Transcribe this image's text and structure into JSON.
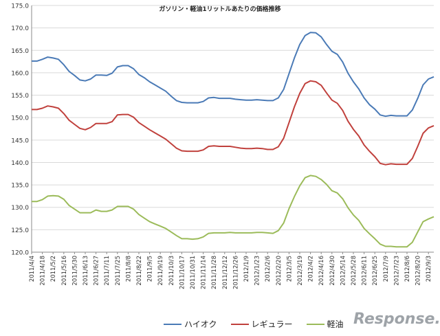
{
  "chart_data": {
    "type": "line",
    "title": "ガソリン・軽油1リットルあたりの価格推移",
    "xlabel": "",
    "ylabel": "",
    "ylim": [
      120,
      175
    ],
    "yticks": [
      "120.0",
      "125.0",
      "130.0",
      "135.0",
      "140.0",
      "145.0",
      "150.0",
      "155.0",
      "160.0",
      "165.0",
      "170.0",
      "175.0"
    ],
    "grid": true,
    "legend_position": "bottom",
    "x": [
      "2011/4/4",
      "2011/4/11",
      "2011/4/18",
      "2011/4/25",
      "2011/5/2",
      "2011/5/9",
      "2011/5/16",
      "2011/5/23",
      "2011/5/30",
      "2011/6/6",
      "2011/6/13",
      "2011/6/20",
      "2011/6/27",
      "2011/7/4",
      "2011/7/11",
      "2011/7/18",
      "2011/7/25",
      "2011/8/1",
      "2011/8/8",
      "2011/8/15",
      "2011/8/22",
      "2011/8/29",
      "2011/9/5",
      "2011/9/12",
      "2011/9/19",
      "2011/9/26",
      "2011/10/3",
      "2011/10/10",
      "2011/10/17",
      "2011/10/24",
      "2011/10/31",
      "2011/11/7",
      "2011/11/14",
      "2011/11/21",
      "2011/11/28",
      "2011/12/5",
      "2011/12/12",
      "2011/12/19",
      "2011/12/26",
      "2012/1/2",
      "2012/1/9",
      "2012/1/16",
      "2012/1/23",
      "2012/1/30",
      "2012/2/6",
      "2012/2/13",
      "2012/2/20",
      "2012/2/27",
      "2012/3/5",
      "2012/3/12",
      "2012/3/19",
      "2012/3/26",
      "2012/4/2",
      "2012/4/9",
      "2012/4/16",
      "2012/4/23",
      "2012/4/30",
      "2012/5/7",
      "2012/5/14",
      "2012/5/21",
      "2012/5/28",
      "2012/6/4",
      "2012/6/11",
      "2012/6/18",
      "2012/6/25",
      "2012/7/2",
      "2012/7/9",
      "2012/7/16",
      "2012/7/23",
      "2012/7/30",
      "2012/8/6",
      "2012/8/13",
      "2012/8/20",
      "2012/8/27",
      "2012/9/3",
      "2012/9/10"
    ],
    "xtick_labels": [
      "2011/4/4",
      "2011/4/18",
      "2011/5/2",
      "2011/5/16",
      "2011/5/30",
      "2011/6/13",
      "2011/6/27",
      "2011/7/11",
      "2011/7/25",
      "2011/8/8",
      "2011/8/22",
      "2011/9/5",
      "2011/9/19",
      "2011/10/3",
      "2011/10/17",
      "2011/10/31",
      "2011/11/14",
      "2011/11/28",
      "2011/12/12",
      "2011/12/26",
      "2012/1/9",
      "2012/1/23",
      "2012/2/6",
      "2012/2/20",
      "2012/3/5",
      "2012/3/19",
      "2012/4/2",
      "2012/4/16",
      "2012/4/30",
      "2012/5/14",
      "2012/5/28",
      "2012/6/11",
      "2012/6/25",
      "2012/7/9",
      "2012/7/23",
      "2012/8/6",
      "2012/8/20",
      "2012/9/3"
    ],
    "series": [
      {
        "name": "ハイオク",
        "color": "#4a7ab6",
        "values": [
          162.6,
          162.6,
          163.0,
          163.5,
          163.3,
          163.0,
          161.8,
          160.3,
          159.4,
          158.4,
          158.2,
          158.6,
          159.5,
          159.5,
          159.4,
          159.9,
          161.3,
          161.6,
          161.6,
          160.9,
          159.6,
          158.9,
          158.0,
          157.3,
          156.6,
          155.9,
          154.8,
          153.8,
          153.4,
          153.3,
          153.3,
          153.3,
          153.6,
          154.4,
          154.5,
          154.3,
          154.3,
          154.3,
          154.1,
          154.0,
          153.9,
          153.9,
          154.0,
          153.9,
          153.8,
          153.8,
          154.4,
          156.3,
          159.8,
          163.3,
          166.3,
          168.3,
          169.0,
          168.9,
          168.0,
          166.3,
          164.8,
          164.1,
          162.4,
          159.9,
          158.0,
          156.4,
          154.4,
          152.9,
          151.9,
          150.6,
          150.3,
          150.5,
          150.4,
          150.4,
          150.4,
          151.7,
          154.3,
          157.3,
          158.6,
          159.1
        ]
      },
      {
        "name": "レギュラー",
        "color": "#c0403c",
        "values": [
          151.8,
          151.8,
          152.1,
          152.6,
          152.4,
          152.1,
          150.9,
          149.4,
          148.5,
          147.6,
          147.3,
          147.8,
          148.7,
          148.7,
          148.7,
          149.1,
          150.6,
          150.7,
          150.7,
          150.1,
          148.9,
          148.1,
          147.3,
          146.6,
          145.9,
          145.2,
          144.2,
          143.2,
          142.6,
          142.5,
          142.5,
          142.5,
          142.8,
          143.6,
          143.7,
          143.6,
          143.6,
          143.6,
          143.4,
          143.2,
          143.1,
          143.1,
          143.2,
          143.1,
          142.9,
          142.9,
          143.5,
          145.4,
          148.9,
          152.4,
          155.4,
          157.6,
          158.2,
          158.0,
          157.2,
          155.5,
          153.9,
          153.2,
          151.6,
          149.2,
          147.4,
          145.9,
          143.9,
          142.5,
          141.3,
          139.8,
          139.5,
          139.7,
          139.6,
          139.6,
          139.6,
          140.9,
          143.6,
          146.5,
          147.7,
          148.2
        ]
      },
      {
        "name": "軽油",
        "color": "#9bbb59",
        "values": [
          131.3,
          131.3,
          131.7,
          132.5,
          132.6,
          132.5,
          131.8,
          130.4,
          129.6,
          128.8,
          128.8,
          128.8,
          129.4,
          129.1,
          129.1,
          129.4,
          130.2,
          130.2,
          130.2,
          129.6,
          128.4,
          127.6,
          126.8,
          126.3,
          125.8,
          125.3,
          124.5,
          123.7,
          123.0,
          123.0,
          122.9,
          123.0,
          123.4,
          124.2,
          124.3,
          124.3,
          124.3,
          124.4,
          124.3,
          124.3,
          124.3,
          124.3,
          124.4,
          124.4,
          124.3,
          124.2,
          124.8,
          126.5,
          129.7,
          132.4,
          134.8,
          136.6,
          137.1,
          136.9,
          136.2,
          135.1,
          133.7,
          133.2,
          131.9,
          129.9,
          128.3,
          127.1,
          125.3,
          124.1,
          123.0,
          121.8,
          121.3,
          121.3,
          121.2,
          121.2,
          121.2,
          122.2,
          124.5,
          126.8,
          127.4,
          127.9
        ]
      }
    ]
  },
  "legend": [
    {
      "label": "ハイオク",
      "color": "#4a7ab6"
    },
    {
      "label": "レギュラー",
      "color": "#c0403c"
    },
    {
      "label": "軽油",
      "color": "#9bbb59"
    }
  ],
  "watermark": "Response."
}
